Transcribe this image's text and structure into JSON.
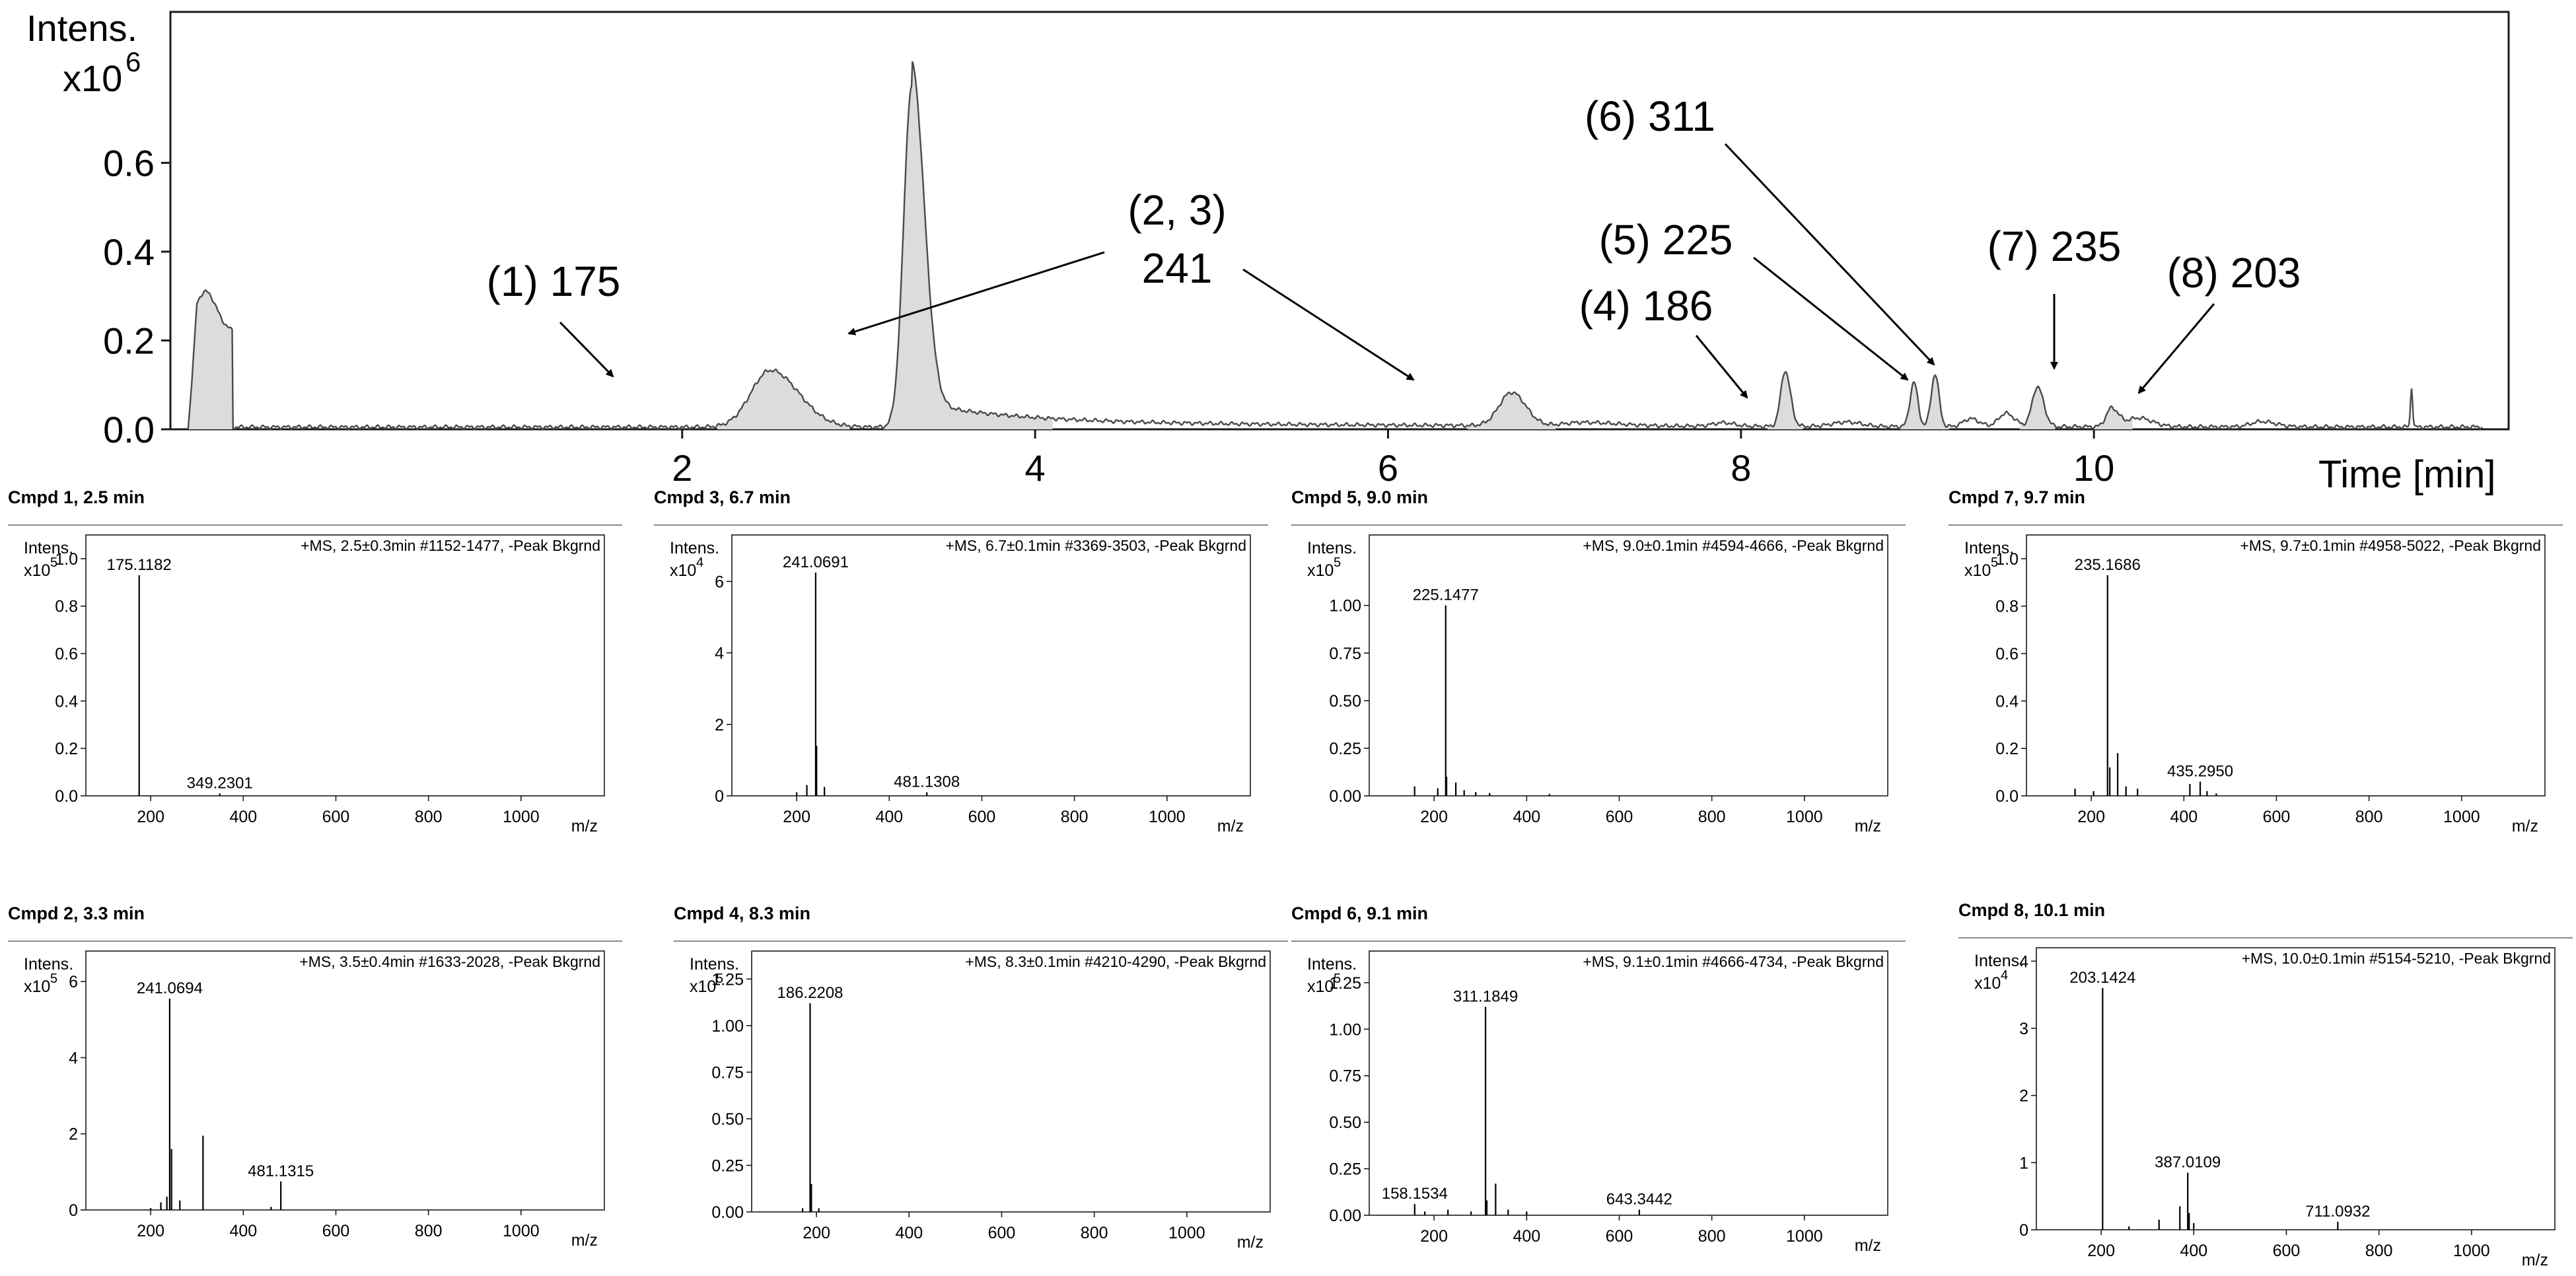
{
  "chart_data": [
    {
      "type": "line",
      "title": "",
      "ylabel_line1": "Intens.",
      "ylabel_line2": "x10",
      "ylabel_exp": "6",
      "xlabel": "Time [min]",
      "xlim": [
        -0.9,
        12.35
      ],
      "ylim": [
        0,
        0.94
      ],
      "xticks": [
        2,
        4,
        6,
        8,
        10
      ],
      "yticks": [
        0.0,
        0.2,
        0.4,
        0.6
      ],
      "ytick_labels": [
        "0.0",
        "0.2",
        "0.4",
        "0.6"
      ],
      "baseline_level": 0.005,
      "fill_color": "#dcdcdc",
      "line_color": "#4a4a4a",
      "peaks": [
        {
          "t": 2.5,
          "height": 0.128
        },
        {
          "t": 3.3,
          "height": 0.765
        },
        {
          "t": 6.7,
          "height": 0.075
        },
        {
          "t": 8.25,
          "height": 0.125
        },
        {
          "t": 8.98,
          "height": 0.1
        },
        {
          "t": 9.1,
          "height": 0.118
        },
        {
          "t": 9.68,
          "height": 0.09
        },
        {
          "t": 10.1,
          "height": 0.042
        },
        {
          "t": 11.8,
          "height": 0.09
        }
      ],
      "annotations": [
        {
          "label": "(1) 175"
        },
        {
          "label": "(2, 3)"
        },
        {
          "label": "241"
        },
        {
          "label": "(4) 186"
        },
        {
          "label": "(5) 225"
        },
        {
          "label": "(6) 311"
        },
        {
          "label": "(7) 235"
        },
        {
          "label": "(8) 203"
        }
      ]
    },
    {
      "type": "bar",
      "title": "Cmpd 1, 2.5 min",
      "header": "+MS, 2.5±0.3min #1152-1477, -Peak Bkgrnd",
      "ylabel": "Intens.",
      "yscale_base": "x10",
      "yscale_exp": "5",
      "xlabel": "m/z",
      "xlim": [
        60,
        1180
      ],
      "ylim": [
        0,
        1.1
      ],
      "yticks": [
        0.0,
        0.2,
        0.4,
        0.6,
        0.8,
        1.0
      ],
      "ytick_labels": [
        "0.0",
        "0.2",
        "0.4",
        "0.6",
        "0.8",
        "1.0"
      ],
      "xticks": [
        200,
        400,
        600,
        800,
        1000
      ],
      "peaks": [
        [
          175.1182,
          0.93
        ],
        [
          349.2301,
          0.01
        ]
      ],
      "peak_labels": [
        {
          "mz": 175.1182,
          "text": "175.1182"
        },
        {
          "mz": 349.2301,
          "text": "349.2301"
        }
      ]
    },
    {
      "type": "bar",
      "title": "Cmpd 3, 6.7 min",
      "header": "+MS, 6.7±0.1min #3369-3503, -Peak Bkgrnd",
      "ylabel": "Intens.",
      "yscale_base": "x10",
      "yscale_exp": "4",
      "xlabel": "m/z",
      "xlim": [
        60,
        1180
      ],
      "ylim": [
        0,
        7.3
      ],
      "yticks": [
        0,
        2,
        4,
        6
      ],
      "ytick_labels": [
        "0",
        "2",
        "4",
        "6"
      ],
      "xticks": [
        200,
        400,
        600,
        800,
        1000
      ],
      "peaks": [
        [
          200,
          0.1
        ],
        [
          222,
          0.3
        ],
        [
          241.0691,
          6.25
        ],
        [
          243,
          1.4
        ],
        [
          260,
          0.25
        ],
        [
          481.1308,
          0.1
        ]
      ],
      "peak_labels": [
        {
          "mz": 241.0691,
          "text": "241.0691"
        },
        {
          "mz": 481.1308,
          "text": "481.1308"
        }
      ]
    },
    {
      "type": "bar",
      "title": "Cmpd 5, 9.0 min",
      "header": "+MS, 9.0±0.1min #4594-4666, -Peak Bkgrnd",
      "ylabel": "Intens.",
      "yscale_base": "x10",
      "yscale_exp": "5",
      "xlabel": "m/z",
      "xlim": [
        60,
        1180
      ],
      "ylim": [
        0,
        1.37
      ],
      "yticks": [
        0.0,
        0.25,
        0.5,
        0.75,
        1.0
      ],
      "ytick_labels": [
        "0.00",
        "0.25",
        "0.50",
        "0.75",
        "1.00"
      ],
      "xticks": [
        200,
        400,
        600,
        800,
        1000
      ],
      "peaks": [
        [
          158,
          0.05
        ],
        [
          208,
          0.04
        ],
        [
          225.1477,
          1.0
        ],
        [
          227,
          0.1
        ],
        [
          247,
          0.07
        ],
        [
          265,
          0.03
        ],
        [
          290,
          0.02
        ],
        [
          320,
          0.015
        ],
        [
          449,
          0.01
        ]
      ],
      "peak_labels": [
        {
          "mz": 225.1477,
          "text": "225.1477"
        }
      ]
    },
    {
      "type": "bar",
      "title": "Cmpd 7, 9.7 min",
      "header": "+MS, 9.7±0.1min #4958-5022, -Peak Bkgrnd",
      "ylabel": "Intens.",
      "yscale_base": "x10",
      "yscale_exp": "5",
      "xlabel": "m/z",
      "xlim": [
        60,
        1180
      ],
      "ylim": [
        0,
        1.1
      ],
      "yticks": [
        0.0,
        0.2,
        0.4,
        0.6,
        0.8,
        1.0
      ],
      "ytick_labels": [
        "0.0",
        "0.2",
        "0.4",
        "0.6",
        "0.8",
        "1.0"
      ],
      "xticks": [
        200,
        400,
        600,
        800,
        1000
      ],
      "peaks": [
        [
          165,
          0.03
        ],
        [
          205,
          0.02
        ],
        [
          235.1686,
          0.93
        ],
        [
          240,
          0.12
        ],
        [
          257,
          0.18
        ],
        [
          275,
          0.04
        ],
        [
          300,
          0.03
        ],
        [
          413,
          0.05
        ],
        [
          435.295,
          0.06
        ],
        [
          450,
          0.02
        ],
        [
          470,
          0.01
        ]
      ],
      "peak_labels": [
        {
          "mz": 235.1686,
          "text": "235.1686"
        },
        {
          "mz": 435.295,
          "text": "435.2950"
        }
      ]
    },
    {
      "type": "bar",
      "title": "Cmpd 2, 3.3 min",
      "header": "+MS, 3.5±0.4min #1633-2028, -Peak Bkgrnd",
      "ylabel": "Intens.",
      "yscale_base": "x10",
      "yscale_exp": "5",
      "xlabel": "m/z",
      "xlim": [
        60,
        1180
      ],
      "ylim": [
        0,
        6.8
      ],
      "yticks": [
        0,
        2,
        4,
        6
      ],
      "ytick_labels": [
        "0",
        "2",
        "4",
        "6"
      ],
      "xticks": [
        200,
        400,
        600,
        800,
        1000
      ],
      "peaks": [
        [
          200,
          0.05
        ],
        [
          222,
          0.2
        ],
        [
          235,
          0.35
        ],
        [
          241.0694,
          5.55
        ],
        [
          245,
          1.6
        ],
        [
          263,
          0.25
        ],
        [
          313,
          1.95
        ],
        [
          460,
          0.08
        ],
        [
          481.1315,
          0.75
        ]
      ],
      "peak_labels": [
        {
          "mz": 241.0694,
          "text": "241.0694"
        },
        {
          "mz": 481.1315,
          "text": "481.1315"
        }
      ]
    },
    {
      "type": "bar",
      "title": "Cmpd 4, 8.3 min",
      "header": "+MS, 8.3±0.1min #4210-4290, -Peak Bkgrnd",
      "ylabel": "Intens.",
      "yscale_base": "x10",
      "yscale_exp": "5",
      "xlabel": "m/z",
      "xlim": [
        60,
        1180
      ],
      "ylim": [
        0,
        1.4
      ],
      "yticks": [
        0.0,
        0.25,
        0.5,
        0.75,
        1.0,
        1.25
      ],
      "ytick_labels": [
        "0.00",
        "0.25",
        "0.50",
        "0.75",
        "1.00",
        "1.25"
      ],
      "xticks": [
        200,
        400,
        600,
        800,
        1000
      ],
      "peaks": [
        [
          170,
          0.02
        ],
        [
          186.2208,
          1.12
        ],
        [
          189,
          0.15
        ],
        [
          205,
          0.02
        ]
      ],
      "peak_labels": [
        {
          "mz": 186.2208,
          "text": "186.2208"
        }
      ]
    },
    {
      "type": "bar",
      "title": "Cmpd 6, 9.1 min",
      "header": "+MS, 9.1±0.1min #4666-4734, -Peak Bkgrnd",
      "ylabel": "Intens.",
      "yscale_base": "x10",
      "yscale_exp": "5",
      "xlabel": "m/z",
      "xlim": [
        60,
        1180
      ],
      "ylim": [
        0,
        1.42
      ],
      "yticks": [
        0.0,
        0.25,
        0.5,
        0.75,
        1.0,
        1.25
      ],
      "ytick_labels": [
        "0.00",
        "0.25",
        "0.50",
        "0.75",
        "1.00",
        "1.25"
      ],
      "xticks": [
        200,
        400,
        600,
        800,
        1000
      ],
      "peaks": [
        [
          158.1534,
          0.06
        ],
        [
          180,
          0.02
        ],
        [
          230,
          0.03
        ],
        [
          280,
          0.02
        ],
        [
          311.1849,
          1.12
        ],
        [
          314,
          0.08
        ],
        [
          333,
          0.17
        ],
        [
          360,
          0.03
        ],
        [
          400,
          0.02
        ],
        [
          643.3442,
          0.03
        ]
      ],
      "peak_labels": [
        {
          "mz": 158.1534,
          "text": "158.1534"
        },
        {
          "mz": 311.1849,
          "text": "311.1849"
        },
        {
          "mz": 643.3442,
          "text": "643.3442"
        }
      ]
    },
    {
      "type": "bar",
      "title": "Cmpd 8, 10.1 min",
      "header": "+MS, 10.0±0.1min #5154-5210, -Peak Bkgrnd",
      "ylabel": "Intens.",
      "yscale_base": "x10",
      "yscale_exp": "4",
      "xlabel": "m/z",
      "xlim": [
        60,
        1180
      ],
      "ylim": [
        0,
        4.2
      ],
      "yticks": [
        0,
        1,
        2,
        3,
        4
      ],
      "ytick_labels": [
        "0",
        "1",
        "2",
        "3",
        "4"
      ],
      "xticks": [
        200,
        400,
        600,
        800,
        1000
      ],
      "peaks": [
        [
          203.1424,
          3.6
        ],
        [
          260,
          0.05
        ],
        [
          325,
          0.15
        ],
        [
          370,
          0.35
        ],
        [
          387.0109,
          0.85
        ],
        [
          390,
          0.25
        ],
        [
          400,
          0.1
        ],
        [
          711.0932,
          0.12
        ]
      ],
      "peak_labels": [
        {
          "mz": 203.1424,
          "text": "203.1424"
        },
        {
          "mz": 387.0109,
          "text": "387.0109"
        },
        {
          "mz": 711.0932,
          "text": "711.0932"
        }
      ]
    }
  ]
}
